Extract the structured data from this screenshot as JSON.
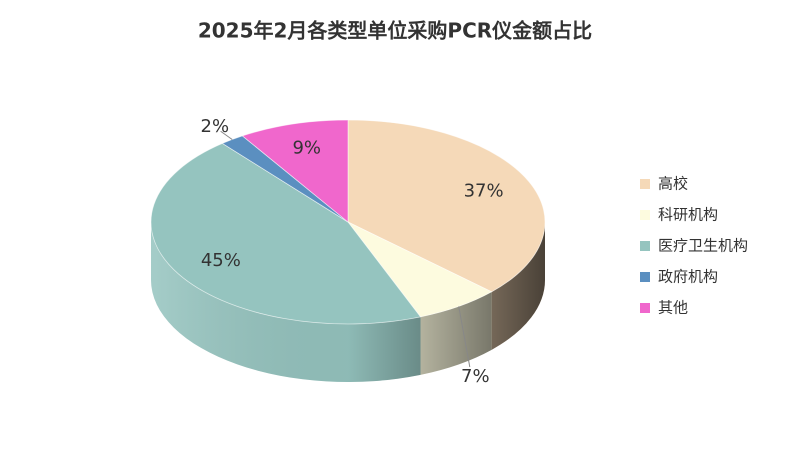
{
  "chart_data": {
    "type": "pie",
    "title": "2025年2月各类型单位采购PCR仪金额占比",
    "categories": [
      "高校",
      "科研机构",
      "医疗卫生机构",
      "政府机构",
      "其他"
    ],
    "values": [
      37,
      7,
      45,
      2,
      9
    ],
    "value_labels": [
      "37%",
      "7%",
      "45%",
      "2%",
      "9%"
    ],
    "colors": [
      "#f5d9b8",
      "#fdfbdf",
      "#95c4bf",
      "#5b8fc0",
      "#f067cc"
    ],
    "legend": "right"
  }
}
